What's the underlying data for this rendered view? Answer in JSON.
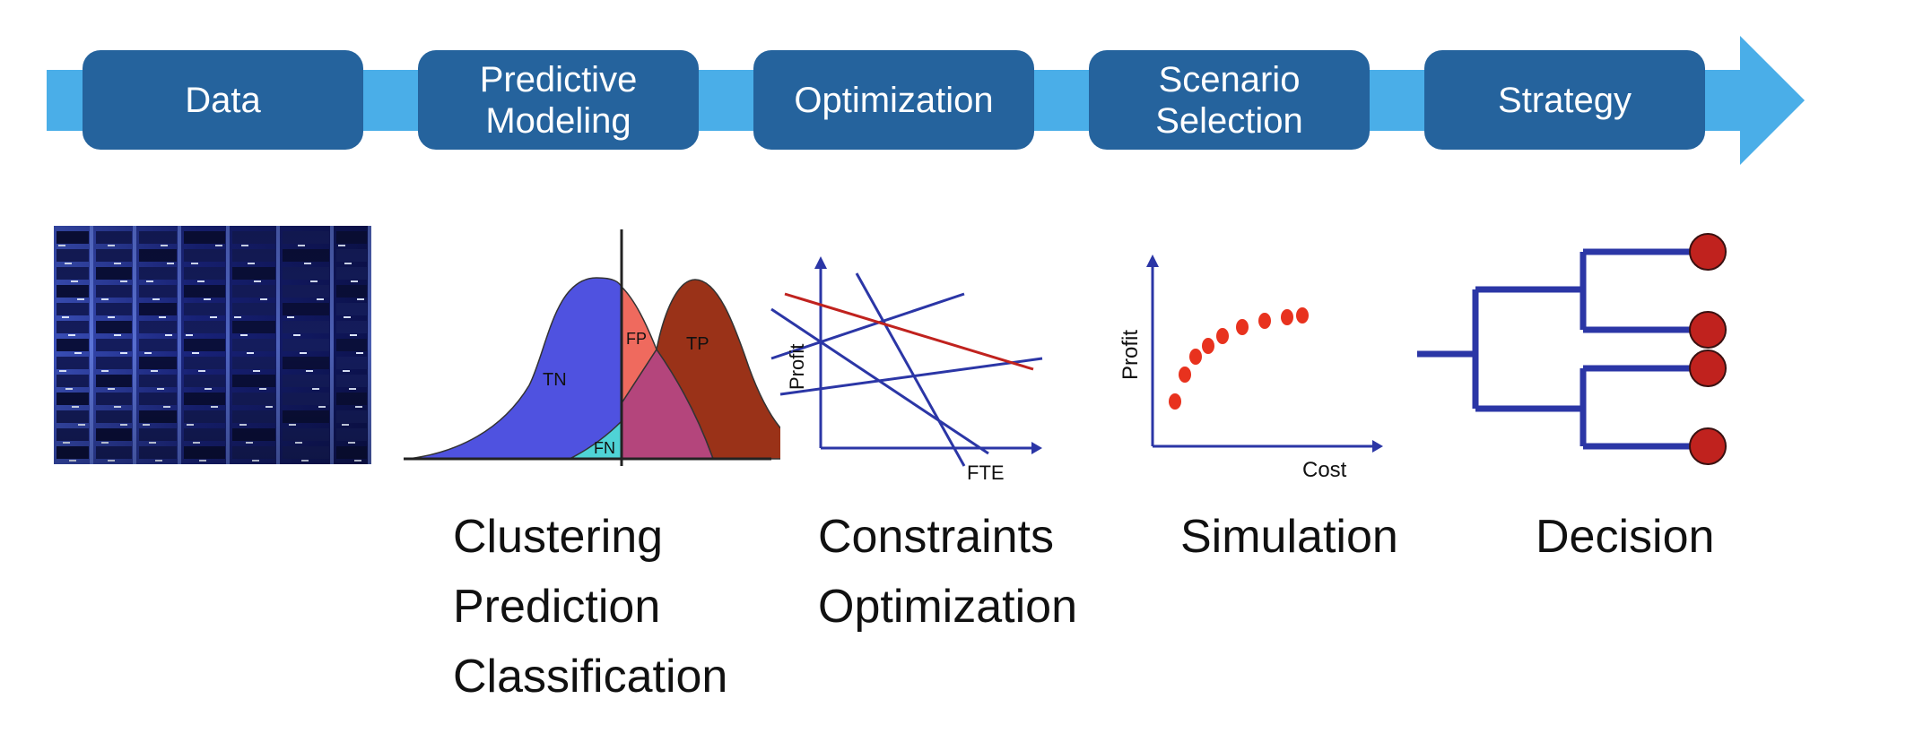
{
  "pipeline": {
    "steps": [
      {
        "label": "Data"
      },
      {
        "label": "Predictive\nModeling"
      },
      {
        "label": "Optimization"
      },
      {
        "label": "Scenario\nSelection"
      },
      {
        "label": "Strategy"
      }
    ],
    "colors": {
      "arrow": "#4aaee8",
      "box": "#25639d",
      "box_text": "#ffffff"
    }
  },
  "illustrations": {
    "data_image": "server-rack-photo",
    "distribution": {
      "labels": {
        "tn": "TN",
        "fp": "FP",
        "tp": "TP",
        "fn": "FN"
      },
      "colors": {
        "tn": "#4f52e0",
        "fp": "#ef6a5e",
        "tp": "#9a3218",
        "overlap": "#b4457c",
        "fn": "#4fd3d6"
      }
    },
    "constraints_plot": {
      "ylabel": "Profit",
      "xlabel": "FTE"
    },
    "simulation_plot": {
      "ylabel": "Profit",
      "xlabel": "Cost",
      "point_color": "#e8321e"
    },
    "decision_tree": {
      "line_color": "#2b36a6",
      "leaf_color": "#c0221e"
    }
  },
  "captions": {
    "modeling": [
      "Clustering",
      "Prediction",
      "Classification"
    ],
    "optimization": [
      "Constraints",
      "Optimization"
    ],
    "simulation": [
      "Simulation"
    ],
    "decision": [
      "Decision"
    ]
  }
}
